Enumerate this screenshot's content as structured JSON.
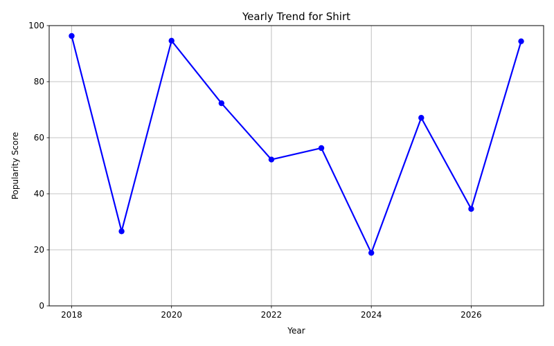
{
  "chart_data": {
    "type": "line",
    "title": "Yearly Trend for Shirt",
    "xlabel": "Year",
    "ylabel": "Popularity Score",
    "x": [
      2018,
      2019,
      2020,
      2021,
      2022,
      2023,
      2024,
      2025,
      2026,
      2027
    ],
    "series": [
      {
        "values": [
          96.3,
          26.6,
          94.6,
          72.3,
          52.2,
          56.3,
          18.9,
          67.1,
          34.6,
          94.4
        ],
        "color": "#0000ff",
        "marker": "circle"
      }
    ],
    "xlim": [
      2017.55,
      2027.45
    ],
    "ylim": [
      0,
      100
    ],
    "x_ticks": [
      "2018",
      "2020",
      "2022",
      "2024",
      "2026"
    ],
    "y_ticks": [
      "0",
      "20",
      "40",
      "60",
      "80",
      "100"
    ],
    "grid": true,
    "legend": false
  }
}
